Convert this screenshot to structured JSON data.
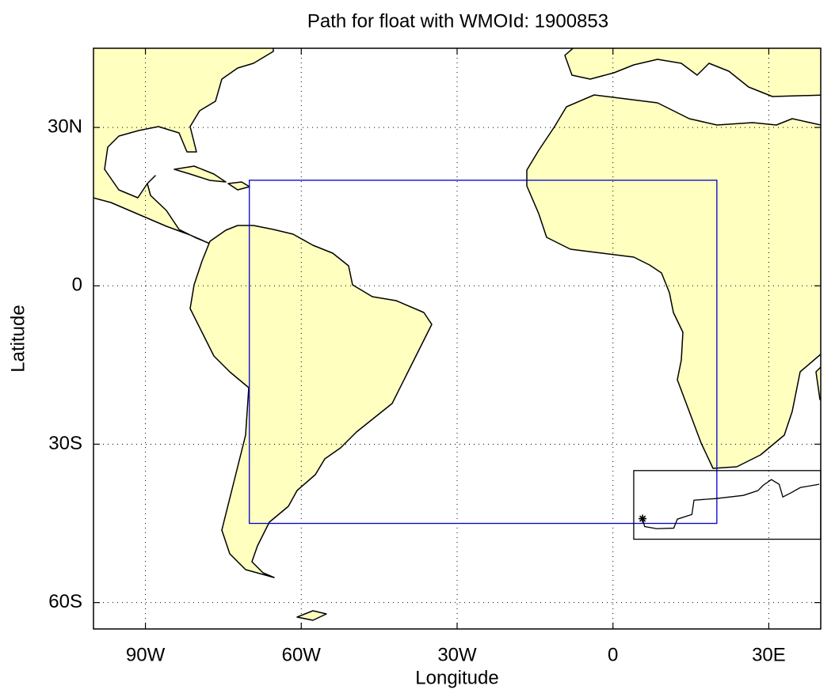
{
  "chart_data": {
    "type": "map",
    "title": "Path for float with WMOId: 1900853",
    "x_label": "Longitude",
    "y_label": "Latitude",
    "xlim": [
      -100,
      40
    ],
    "ylim": [
      -65,
      45
    ],
    "xticks": [
      {
        "value": -90,
        "label": "90W"
      },
      {
        "value": -60,
        "label": "60W"
      },
      {
        "value": -30,
        "label": "30W"
      },
      0,
      {
        "value": 30,
        "label": "30E"
      }
    ],
    "yticks": [
      {
        "value": 30,
        "label": "30N"
      },
      0,
      {
        "value": -30,
        "label": "30S"
      },
      {
        "value": -60,
        "label": "60S"
      }
    ],
    "grid": true,
    "region_box": {
      "lon": [
        -70,
        20
      ],
      "lat": [
        -45,
        20
      ],
      "color": "#0000cc"
    },
    "zoom_box": {
      "lon": [
        4,
        40
      ],
      "lat": [
        -48,
        -35
      ],
      "color": "#000000"
    },
    "float_path": {
      "color": "#000000",
      "lon": [
        5.7,
        6.1,
        8.4,
        11.7,
        12.4,
        15.2,
        15.6,
        19.8,
        25.1,
        27.9,
        28.9,
        30.5,
        32.0,
        32.7,
        34.3,
        36.1,
        39.7
      ],
      "lat": [
        -44.1,
        -45.6,
        -46.0,
        -45.9,
        -44.2,
        -43.3,
        -40.6,
        -40.3,
        -39.7,
        -38.8,
        -37.8,
        -36.7,
        -37.6,
        -40.0,
        -39.2,
        -38.2,
        -37.6
      ]
    }
  }
}
